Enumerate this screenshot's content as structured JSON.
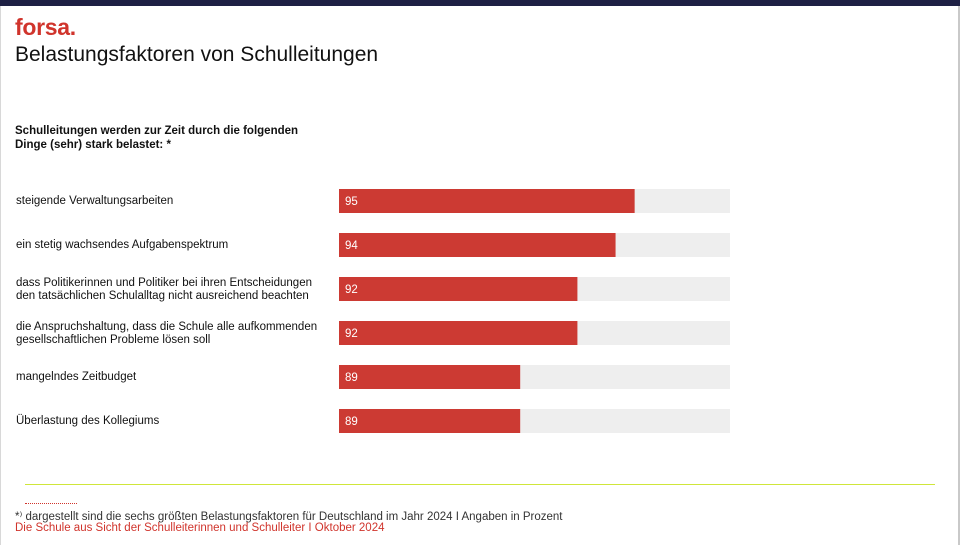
{
  "header": {
    "logo": "forsa.",
    "title": "Belastungsfaktoren von Schulleitungen"
  },
  "question": {
    "line1": "Schulleitungen werden zur Zeit durch die folgenden",
    "line2": "Dinge (sehr) stark belastet: *"
  },
  "chart_data": {
    "type": "bar",
    "orientation": "horizontal",
    "title": "",
    "xlabel": "",
    "ylabel": "",
    "xlim": [
      0,
      100
    ],
    "categories": [
      [
        "steigende Verwaltungsarbeiten"
      ],
      [
        "ein stetig wachsendes Aufgabenspektrum"
      ],
      [
        "dass Politikerinnen und Politiker bei ihren Entscheidungen",
        "den tatsächlichen Schulalltag nicht ausreichend beachten"
      ],
      [
        "die Anspruchshaltung, dass die Schule alle aufkommenden",
        "gesellschaftlichen Probleme lösen soll"
      ],
      [
        "mangelndes Zeitbudget"
      ],
      [
        "Überlastung des Kollegiums"
      ]
    ],
    "values": [
      95,
      94,
      92,
      92,
      89,
      89
    ],
    "bar_color": "#cc3a33",
    "track_color": "#eeeeee",
    "grid": false,
    "legend": "none"
  },
  "footnote": {
    "marker": "*⁾",
    "text": "dargestellt sind die sechs größten Belastungsfaktoren für Deutschland im Jahr 2024 I Angaben in Prozent"
  },
  "source": "Die Schule aus Sicht der Schulleiterinnen und Schulleiter I Oktober 2024"
}
